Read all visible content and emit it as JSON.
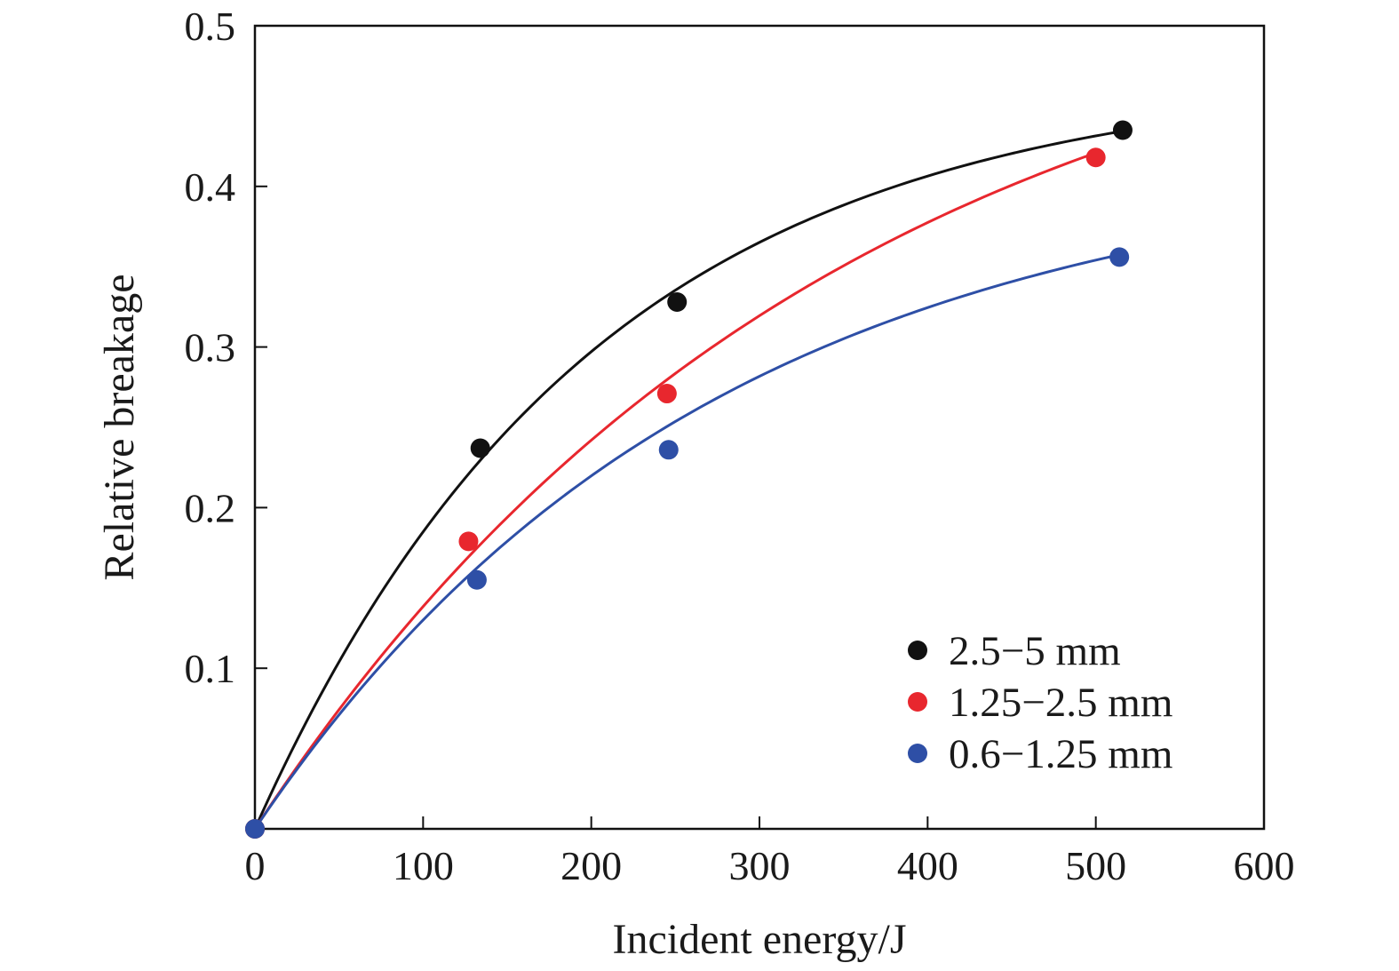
{
  "chart_data": {
    "type": "scatter",
    "xlabel": "Incident energy/J",
    "ylabel": "Relative breakage",
    "xlim": [
      0,
      600
    ],
    "ylim": [
      0,
      0.5
    ],
    "x_ticks": [
      0,
      100,
      200,
      300,
      400,
      500,
      600
    ],
    "x_tick_labels": [
      "0",
      "100",
      "200",
      "300",
      "400",
      "500",
      "600"
    ],
    "y_ticks": [
      0.1,
      0.2,
      0.3,
      0.4,
      0.5
    ],
    "y_tick_labels": [
      "0.1",
      "0.2",
      "0.3",
      "0.4",
      "0.5"
    ],
    "grid": false,
    "legend_position": "bottom-right",
    "series": [
      {
        "name": "2.5−5 mm",
        "color": "#111111",
        "points": [
          [
            0,
            0
          ],
          [
            134,
            0.237
          ],
          [
            251,
            0.328
          ],
          [
            516,
            0.435
          ]
        ],
        "fit": {
          "form": "a*(1-exp(-x/b))",
          "a": 0.47,
          "b": 200
        }
      },
      {
        "name": "1.25−2.5 mm",
        "color": "#e8272e",
        "points": [
          [
            0,
            0
          ],
          [
            127,
            0.179
          ],
          [
            245,
            0.271
          ],
          [
            500,
            0.418
          ]
        ],
        "fit": {
          "form": "a*(1-exp(-x/b))",
          "a": 0.55,
          "b": 345
        }
      },
      {
        "name": "0.6−1.25 mm",
        "color": "#2e4fa6",
        "points": [
          [
            0,
            0
          ],
          [
            132,
            0.155
          ],
          [
            246,
            0.236
          ],
          [
            514,
            0.356
          ]
        ],
        "fit": {
          "form": "a*(1-exp(-x/b))",
          "a": 0.42,
          "b": 270
        }
      }
    ]
  }
}
